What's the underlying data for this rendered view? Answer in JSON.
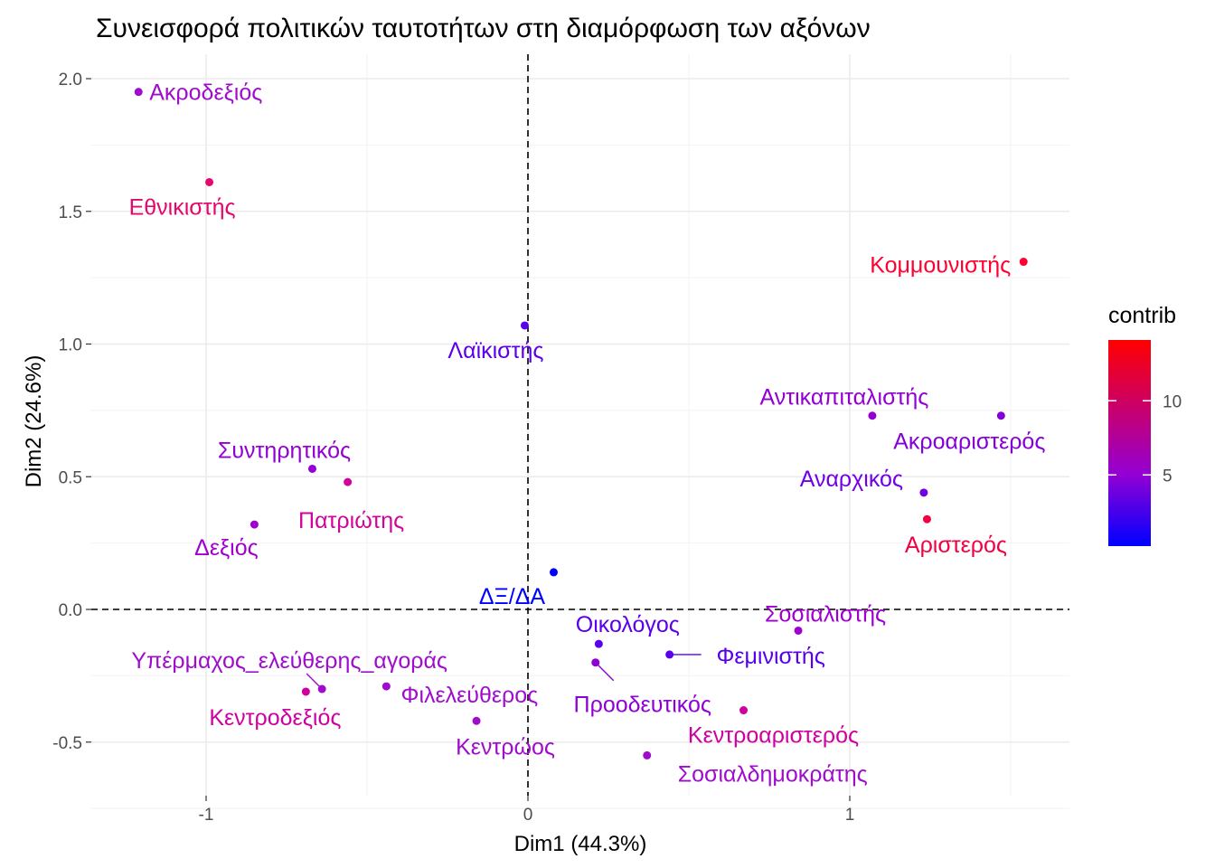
{
  "chart_data": {
    "type": "scatter",
    "title": "Συνεισφορά πολιτικών ταυτοτήτων στη διαμόρφωση των αξόνων",
    "xlabel": "Dim1 (44.3%)",
    "ylabel": "Dim2 (24.6%)",
    "xlim": [
      -1.4,
      1.68
    ],
    "ylim": [
      -0.68,
      2.08
    ],
    "x_ticks": [
      -1,
      0,
      1
    ],
    "x_tick_labels": [
      "-1",
      "0",
      "1"
    ],
    "y_ticks": [
      -0.5,
      0.0,
      0.5,
      1.0,
      1.5,
      2.0
    ],
    "y_tick_labels": [
      "-0.5",
      "0.0",
      "0.5",
      "1.0",
      "1.5",
      "2.0"
    ],
    "grid": true,
    "reference_lines": {
      "x": 0,
      "y": 0,
      "style": "dashed"
    },
    "color_scale": {
      "legend_title": "contrib",
      "low_color": "#0000ff",
      "mid_color": "#9400d3",
      "high_color": "#ff0000",
      "min": 0.2,
      "max": 14.1,
      "ticks": [
        5,
        10
      ],
      "tick_labels": [
        "5",
        "10"
      ],
      "placement": "right"
    },
    "points": [
      {
        "label": "Ακροδεξιός",
        "x": -1.21,
        "y": 1.95,
        "contrib": 6.0,
        "color": "#9f0ccd"
      },
      {
        "label": "Εθνικιστής",
        "x": -0.99,
        "y": 1.61,
        "contrib": 11.5,
        "color": "#e4076d"
      },
      {
        "label": "Κομμουνιστής",
        "x": 1.54,
        "y": 1.31,
        "contrib": 13.8,
        "color": "#ff0030"
      },
      {
        "label": "Λαϊκιστής",
        "x": -0.01,
        "y": 1.07,
        "contrib": 1.9,
        "color": "#5a00ec"
      },
      {
        "label": "Αντικαπιταλιστής",
        "x": 1.07,
        "y": 0.73,
        "contrib": 5.0,
        "color": "#9400d3"
      },
      {
        "label": "Ακροαριστερός",
        "x": 1.47,
        "y": 0.73,
        "contrib": 4.0,
        "color": "#8400db"
      },
      {
        "label": "Συντηρητικός",
        "x": -0.67,
        "y": 0.53,
        "contrib": 5.0,
        "color": "#9400d3"
      },
      {
        "label": "Πατριώτης",
        "x": -0.56,
        "y": 0.48,
        "contrib": 9.5,
        "color": "#d0049a"
      },
      {
        "label": "Αναρχικός",
        "x": 1.23,
        "y": 0.44,
        "contrib": 3.0,
        "color": "#7000e5"
      },
      {
        "label": "Αριστερός",
        "x": 1.24,
        "y": 0.34,
        "contrib": 13.0,
        "color": "#f20040"
      },
      {
        "label": "Δεξιός",
        "x": -0.85,
        "y": 0.32,
        "contrib": 6.0,
        "color": "#a000cf"
      },
      {
        "label": "ΔΞ/ΔΑ",
        "x": 0.08,
        "y": 0.14,
        "contrib": 0.3,
        "color": "#0000ff"
      },
      {
        "label": "Σοσιαλιστής",
        "x": 0.84,
        "y": -0.08,
        "contrib": 6.0,
        "color": "#a000cf"
      },
      {
        "label": "Οικολόγος",
        "x": 0.22,
        "y": -0.13,
        "contrib": 2.2,
        "color": "#5a00ec"
      },
      {
        "label": "Φεμινιστής",
        "x": 0.44,
        "y": -0.17,
        "contrib": 2.0,
        "color": "#5800ee"
      },
      {
        "label": "Προοδευτικός",
        "x": 0.21,
        "y": -0.2,
        "contrib": 5.0,
        "color": "#8f00d6"
      },
      {
        "label": "Υπέρμαχος_ελεύθερης_αγοράς",
        "x": -0.64,
        "y": -0.3,
        "contrib": 6.0,
        "color": "#9f0ccd"
      },
      {
        "label": "Κεντροδεξιός",
        "x": -0.69,
        "y": -0.31,
        "contrib": 9.0,
        "color": "#cf00a0"
      },
      {
        "label": "Φιλελεύθερος",
        "x": -0.44,
        "y": -0.29,
        "contrib": 6.0,
        "color": "#9f0ccd"
      },
      {
        "label": "Κεντροαριστερός",
        "x": 0.67,
        "y": -0.38,
        "contrib": 9.0,
        "color": "#cf00a0"
      },
      {
        "label": "Κεντρώος",
        "x": -0.16,
        "y": -0.42,
        "contrib": 6.0,
        "color": "#9f0ccd"
      },
      {
        "label": "Σοσιαλδημοκράτης",
        "x": 0.37,
        "y": -0.55,
        "contrib": 6.0,
        "color": "#9f0ccd"
      }
    ]
  }
}
